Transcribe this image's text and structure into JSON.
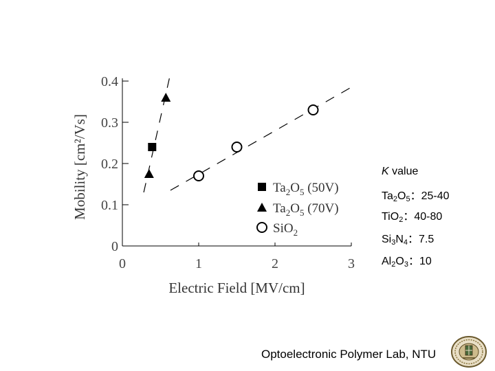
{
  "chart_data": {
    "type": "scatter",
    "xlabel": "Electric Field [MV/cm]",
    "ylabel": "Mobility [cm²/Vs]",
    "xlim": [
      0,
      3
    ],
    "ylim": [
      0,
      0.4
    ],
    "x_ticks": [
      "0",
      "1",
      "2",
      "3"
    ],
    "y_ticks": [
      "0",
      "0.1",
      "0.2",
      "0.3",
      "0.4"
    ],
    "grid": false,
    "legend_position": "bottom-right",
    "series": [
      {
        "name": "Ta2O5 (50V)",
        "marker": "square",
        "x": [
          0.39
        ],
        "y": [
          0.24
        ]
      },
      {
        "name": "Ta2O5 (70V)",
        "marker": "triangle",
        "x": [
          0.35,
          0.57
        ],
        "y": [
          0.175,
          0.36
        ]
      },
      {
        "name": "SiO2",
        "marker": "circle",
        "x": [
          1.0,
          1.5,
          2.5
        ],
        "y": [
          0.17,
          0.24,
          0.33
        ]
      }
    ],
    "fit_lines": [
      {
        "x": [
          0.28,
          0.62
        ],
        "y": [
          0.13,
          0.41
        ]
      },
      {
        "x": [
          0.63,
          3.0
        ],
        "y": [
          0.135,
          0.385
        ]
      }
    ]
  },
  "legend": {
    "ta50": {
      "base": "Ta",
      "s1": "2",
      "mid": "O",
      "s2": "5",
      "tail": " (50V)"
    },
    "ta70": {
      "base": "Ta",
      "s1": "2",
      "mid": "O",
      "s2": "5",
      "tail": " (70V)"
    },
    "sio2": {
      "base": "SiO",
      "s1": "2"
    }
  },
  "k_panel": {
    "title_italic": "K",
    "title_rest": " value",
    "rows": [
      {
        "name": "Ta",
        "s1": "2",
        "mid": "O",
        "s2": "5",
        "value": "：25-40"
      },
      {
        "name": "TiO",
        "s1": "2",
        "mid": "",
        "s2": "",
        "value": "：40-80"
      },
      {
        "name": "Si",
        "s1": "3",
        "mid": "N",
        "s2": "4",
        "value": "：7.5"
      },
      {
        "name": "Al",
        "s1": "2",
        "mid": "O",
        "s2": "3",
        "value": "：10"
      }
    ]
  },
  "footer": {
    "lab": "Optoelectronic Polymer Lab, NTU"
  }
}
